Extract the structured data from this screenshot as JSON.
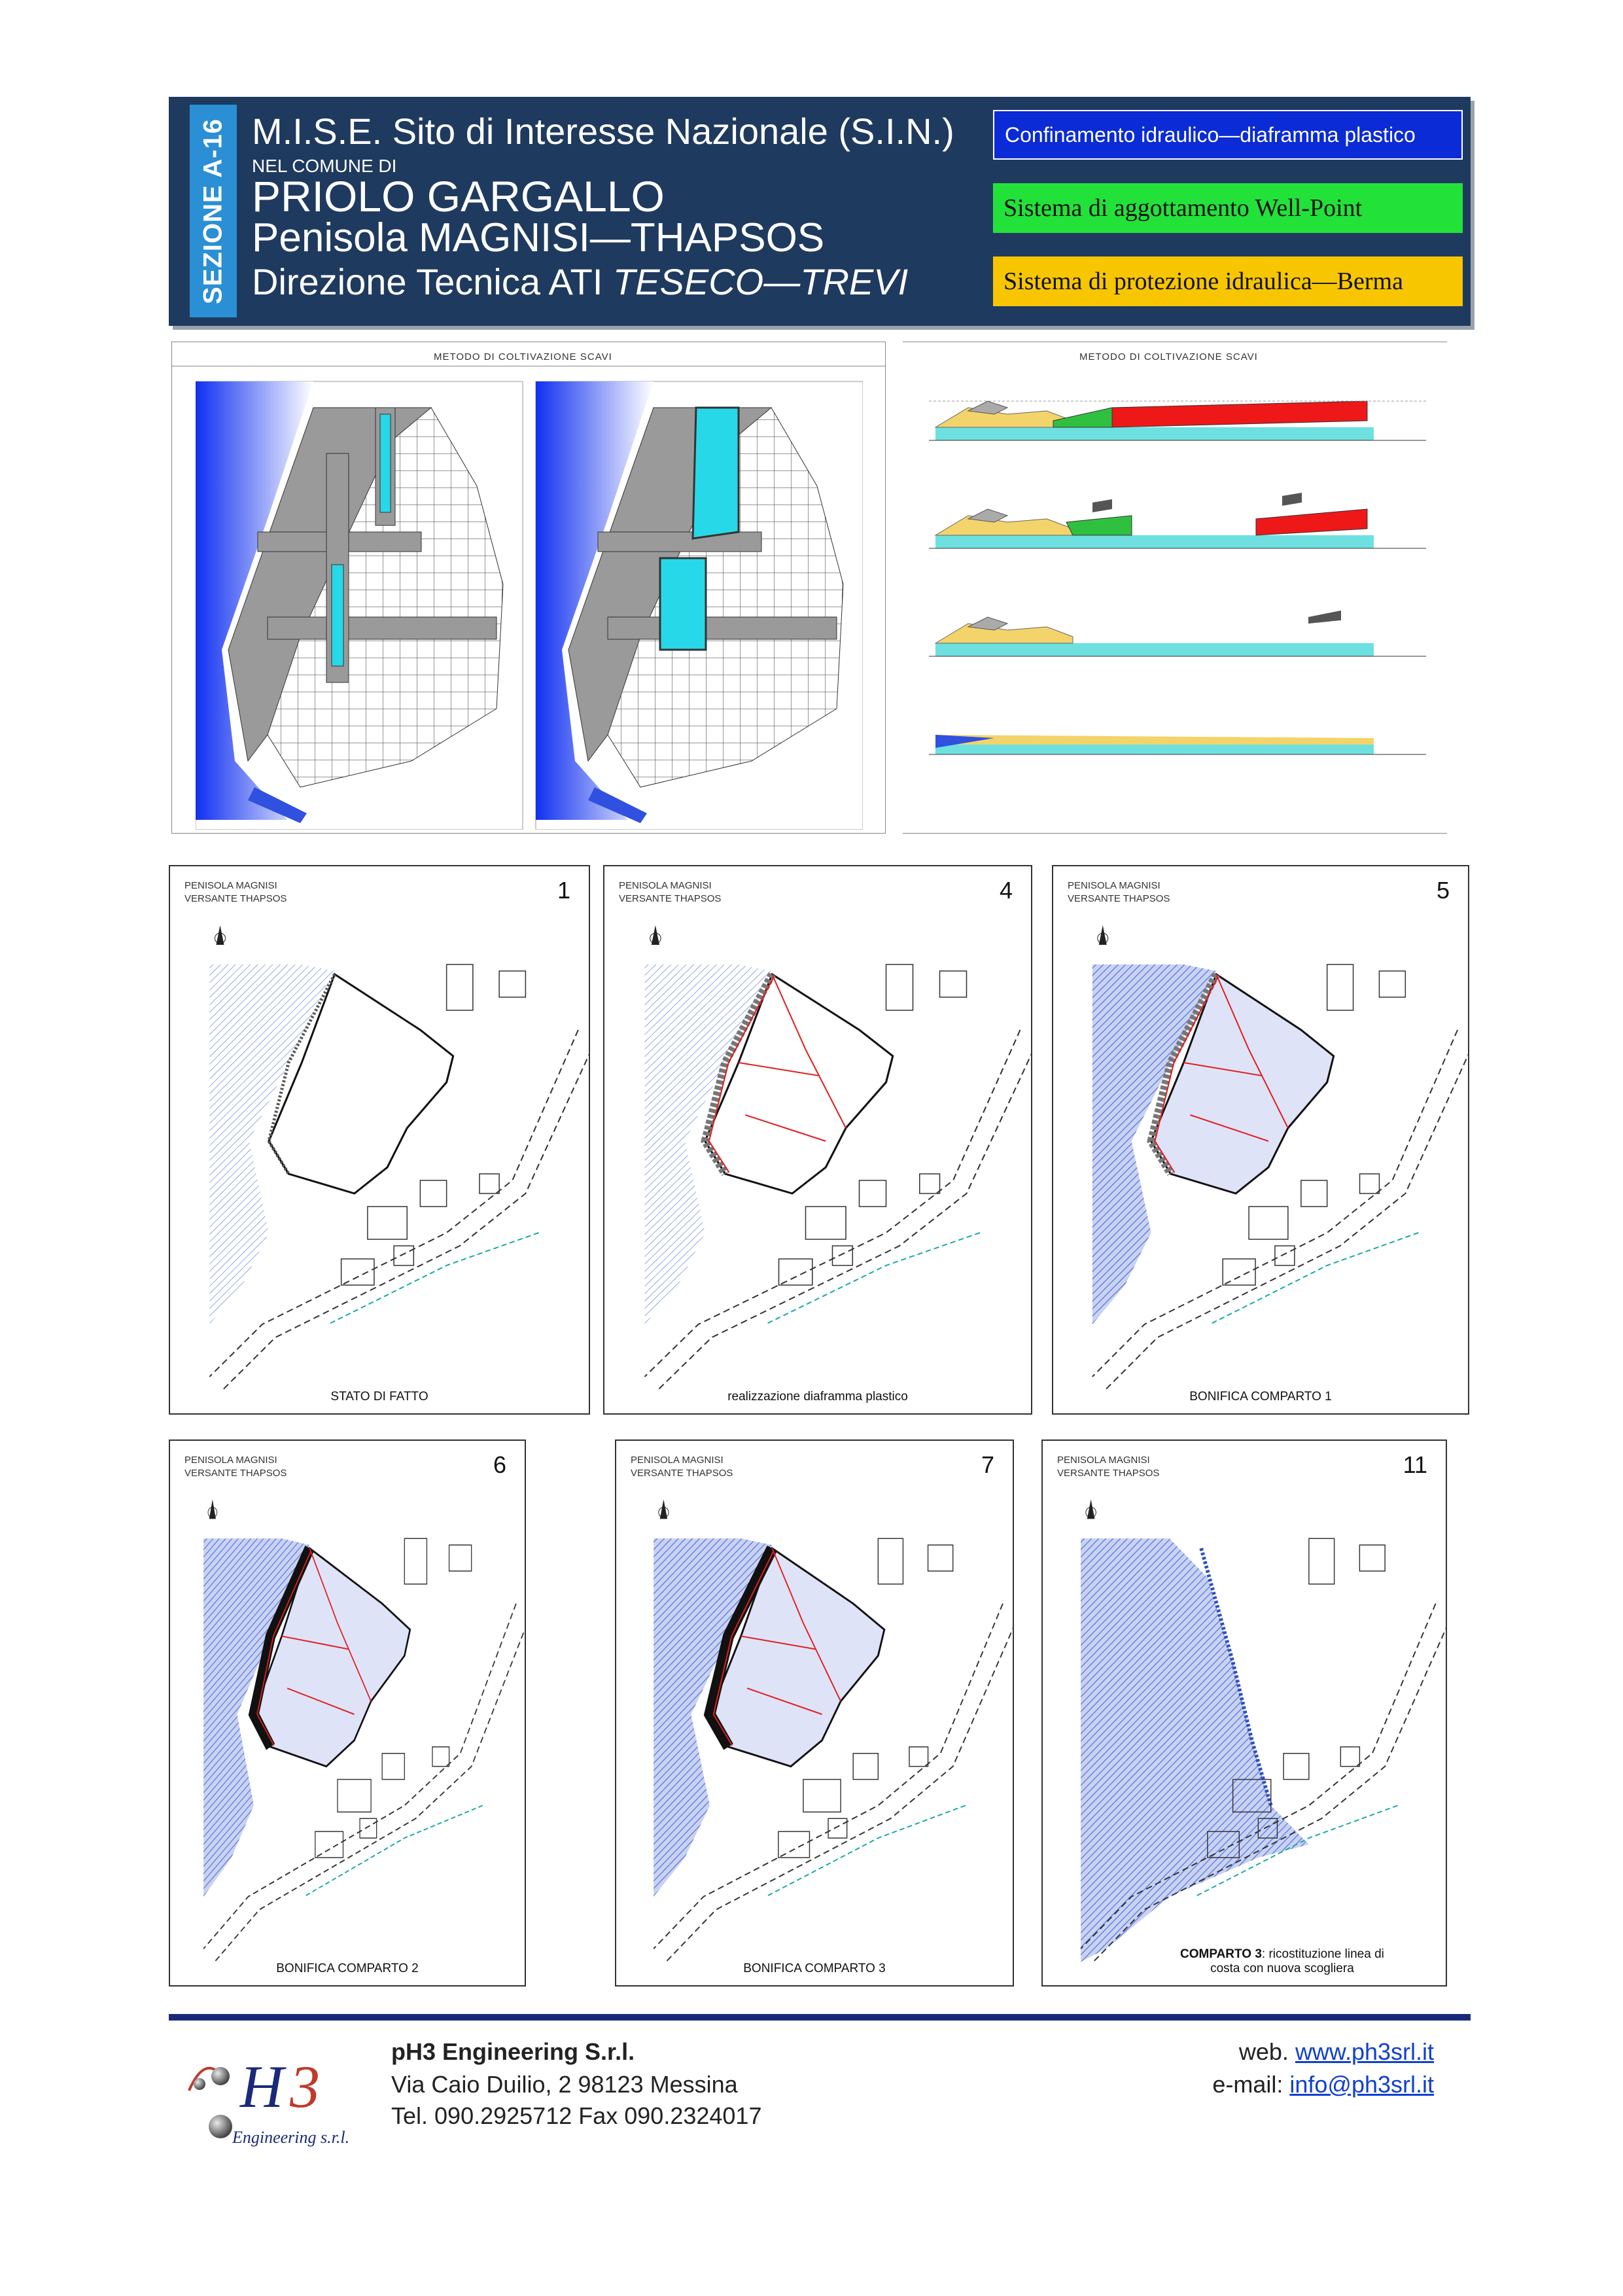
{
  "header": {
    "section": "SEZIONE A-16",
    "line1": "M.I.S.E. Sito di Interesse Nazionale (S.I.N.)",
    "line2": "NEL COMUNE DI",
    "line3": "PRIOLO GARGALLO",
    "line4": "Penisola MAGNISI—THAPSOS",
    "line5_prefix": "Direzione Tecnica ATI ",
    "line5_emph": "TESECO—TREVI"
  },
  "legend": [
    {
      "label": "Confinamento idraulico—diaframma plastico",
      "color": "#0a2bd6"
    },
    {
      "label": "Sistema di aggottamento Well-Point",
      "color": "#22e23a"
    },
    {
      "label": "Sistema di protezione idraulica—Berma",
      "color": "#f7c600"
    }
  ],
  "figures": {
    "plan_title": "METODO DI COLTIVAZIONE SCAVI",
    "section_title": "METODO DI COLTIVAZIONE SCAVI"
  },
  "maps": [
    {
      "number": "1",
      "header": "PENISOLA MAGNISI\nVERSANTE THAPSOS",
      "caption": "STATO DI FATTO",
      "stage": 1
    },
    {
      "number": "4",
      "header": "PENISOLA MAGNISI\nVERSANTE THAPSOS",
      "caption": "realizzazione diaframma plastico",
      "stage": 4
    },
    {
      "number": "5",
      "header": "PENISOLA MAGNISI\nVERSANTE THAPSOS",
      "caption": "BONIFICA COMPARTO 1",
      "stage": 5
    },
    {
      "number": "6",
      "header": "PENISOLA MAGNISI\nVERSANTE THAPSOS",
      "caption": "BONIFICA COMPARTO 2",
      "stage": 6
    },
    {
      "number": "7",
      "header": "PENISOLA MAGNISI\nVERSANTE THAPSOS",
      "caption": "BONIFICA COMPARTO 3",
      "stage": 7
    },
    {
      "number": "11",
      "header": "PENISOLA MAGNISI\nVERSANTE THAPSOS",
      "caption_bold": "COMPARTO 3",
      "caption": ": ricostituzione linea di\ncosta con nuova scogliera",
      "stage": 11
    }
  ],
  "footer": {
    "company": "pH3 Engineering S.r.l.",
    "address": "Via Caio Duilio, 2 98123 Messina",
    "phone": "Tel. 090.2925712 Fax 090.2324017",
    "web_label": "web. ",
    "web": "www.ph3srl.it",
    "email_label": "e-mail: ",
    "email": "info@ph3srl.it",
    "logo_text": "Engineering s.r.l."
  }
}
